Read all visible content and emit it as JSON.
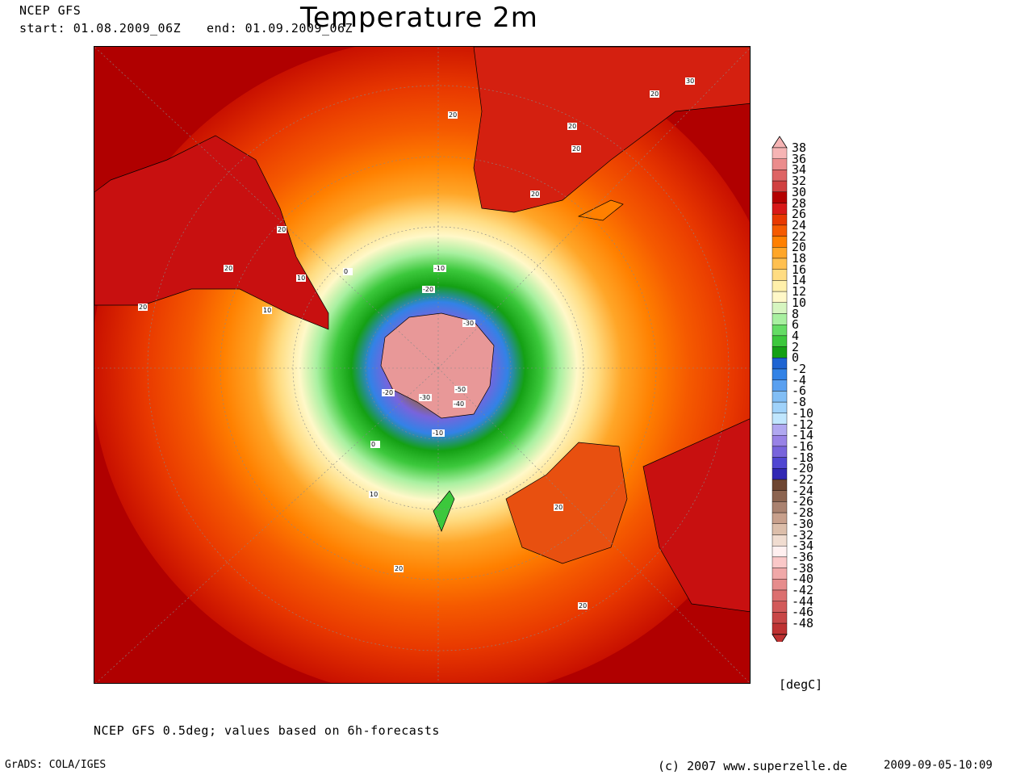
{
  "header": {
    "model": "NCEP GFS",
    "start_label": "start: 01.08.2009_06Z",
    "end_label": "end: 01.09.2009_06Z",
    "title": "Temperature 2m"
  },
  "map": {
    "contour_labels": [
      "20",
      "30",
      "20",
      "20",
      "20",
      "20",
      "20",
      "20",
      "10",
      "20",
      "10",
      "0",
      "-10",
      "-20",
      "-30",
      "-20",
      "-30",
      "-50",
      "-40",
      "-10",
      "0",
      "10",
      "20",
      "20",
      "20"
    ]
  },
  "colorbar": {
    "unit": "[degC]",
    "ticks": [
      "38",
      "36",
      "34",
      "32",
      "30",
      "28",
      "26",
      "24",
      "22",
      "20",
      "18",
      "16",
      "14",
      "12",
      "10",
      "8",
      "6",
      "4",
      "2",
      "0",
      "-2",
      "-4",
      "-6",
      "-8",
      "-10",
      "-12",
      "-14",
      "-16",
      "-18",
      "-20",
      "-22",
      "-24",
      "-26",
      "-28",
      "-30",
      "-32",
      "-34",
      "-36",
      "-38",
      "-40",
      "-42",
      "-44",
      "-46",
      "-48"
    ],
    "colors": [
      "#f6b4b4",
      "#eb8c8c",
      "#de6464",
      "#d04040",
      "#b40000",
      "#d81818",
      "#e83800",
      "#f55a00",
      "#ff8000",
      "#ffa628",
      "#ffc050",
      "#ffdc82",
      "#fff0aa",
      "#fff8c8",
      "#d6f5c0",
      "#a8f0a0",
      "#64dc64",
      "#3cc83c",
      "#14a014",
      "#1e64d2",
      "#3282e6",
      "#5aa0f0",
      "#82bef5",
      "#a0d2fa",
      "#c0e6fe",
      "#b0a8f0",
      "#9882e6",
      "#7864dc",
      "#5046d2",
      "#3228b4",
      "#6e4632",
      "#8c6450",
      "#aa8270",
      "#c8a08c",
      "#dcbeaa",
      "#f0dcd0",
      "#fff0f0",
      "#fac8c8",
      "#f0a8a8",
      "#e68c8c",
      "#dc7070",
      "#d25a5a",
      "#c84646",
      "#be3232"
    ]
  },
  "footer": {
    "note": "NCEP GFS 0.5deg; values based on 6h-forecasts",
    "software": "GrADS: COLA/IGES",
    "copyright": "(c) 2007 www.superzelle.de",
    "timestamp": "2009-09-05-10:09"
  }
}
